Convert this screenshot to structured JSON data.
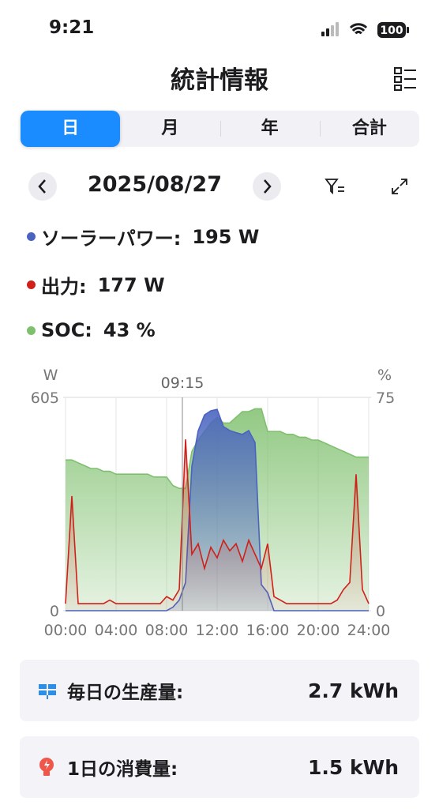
{
  "status_bar": {
    "time": "9:21",
    "battery": "100"
  },
  "header": {
    "title": "統計情報"
  },
  "tabs": [
    "日",
    "月",
    "年",
    "合計"
  ],
  "date": "2025/08/27",
  "readouts": [
    {
      "label": "ソーラーパワー:",
      "value": "195 W",
      "color": "#4a63c0"
    },
    {
      "label": "出力:",
      "value": "177 W",
      "color": "#d0201a"
    },
    {
      "label": "SOC:",
      "value": "43 %",
      "color": "#7fc06e"
    }
  ],
  "chart_data": {
    "type": "area",
    "x": [
      0,
      0.5,
      1,
      1.5,
      2,
      2.5,
      3,
      3.5,
      4,
      4.5,
      5,
      5.5,
      6,
      6.5,
      7,
      7.5,
      8,
      8.5,
      9,
      9.5,
      10,
      10.5,
      11,
      11.5,
      12,
      12.5,
      13,
      13.5,
      14,
      14.5,
      15,
      15.5,
      16,
      16.5,
      17,
      17.5,
      18,
      18.5,
      19,
      19.5,
      20,
      20.5,
      21,
      21.5,
      22,
      22.5,
      23,
      23.5,
      24
    ],
    "xlim": [
      0,
      24
    ],
    "xticks": [
      {
        "value": 0,
        "label": "00:00"
      },
      {
        "value": 4,
        "label": "04:00"
      },
      {
        "value": 8,
        "label": "08:00"
      },
      {
        "value": 12,
        "label": "12:00"
      },
      {
        "value": 16,
        "label": "16:00"
      },
      {
        "value": 20,
        "label": "20:00"
      },
      {
        "value": 24,
        "label": "24:00"
      }
    ],
    "ylabel": "W",
    "ylim": [
      0,
      605
    ],
    "yticks": [
      0,
      605
    ],
    "y2label": "%",
    "y2lim": [
      0,
      75
    ],
    "y2ticks": [
      0,
      75
    ],
    "grid": true,
    "cursor": {
      "value": 9.25,
      "label": "09:15"
    },
    "series": [
      {
        "color": "#4a63c0",
        "values": [
          0,
          0,
          0,
          0,
          0,
          0,
          0,
          0,
          0,
          0,
          0,
          0,
          0,
          0,
          0,
          0,
          0,
          10,
          30,
          80,
          410,
          510,
          555,
          567,
          571,
          522,
          511,
          505,
          500,
          511,
          477,
          74,
          51,
          0,
          0,
          0,
          0,
          0,
          0,
          0,
          0,
          0,
          0,
          0,
          0,
          0,
          0,
          0,
          0
        ]
      },
      {
        "color": "#d0201a",
        "values": [
          20,
          325,
          20,
          20,
          20,
          20,
          20,
          30,
          20,
          20,
          20,
          20,
          20,
          20,
          20,
          20,
          40,
          30,
          60,
          486,
          160,
          190,
          120,
          180,
          150,
          200,
          170,
          190,
          140,
          200,
          160,
          120,
          190,
          40,
          30,
          20,
          20,
          20,
          20,
          20,
          20,
          20,
          20,
          30,
          60,
          80,
          387,
          60,
          20
        ]
      },
      {
        "color": "#7fc06e",
        "axis": "y2",
        "values": [
          53,
          53,
          52,
          51,
          50,
          50,
          49,
          49,
          48,
          48,
          48,
          48,
          48,
          48,
          47,
          47,
          47,
          44,
          43,
          43,
          56,
          60,
          63,
          66,
          68,
          66,
          66,
          68,
          70,
          70,
          71,
          71,
          63,
          63,
          63,
          62,
          62,
          61,
          61,
          60,
          60,
          59,
          58,
          57,
          56,
          55,
          54,
          54,
          54
        ]
      }
    ]
  },
  "summary": [
    {
      "label": "毎日の生産量:",
      "value": "2.7 kWh"
    },
    {
      "label": "1日の消費量:",
      "value": "1.5 kWh"
    }
  ]
}
